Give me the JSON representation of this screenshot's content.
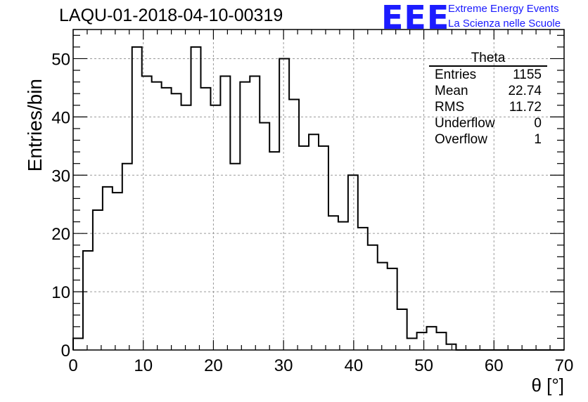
{
  "title": "LAQU-01-2018-04-10-00319",
  "logo": {
    "text": "EEE",
    "line1": "Extreme Energy Events",
    "line2": "La Scienza nelle Scuole",
    "color": "#1c1cff"
  },
  "stats": {
    "name": "Theta",
    "rows": [
      {
        "label": "Entries",
        "value": "1155"
      },
      {
        "label": "Mean",
        "value": "22.74"
      },
      {
        "label": "RMS",
        "value": "11.72"
      },
      {
        "label": "Underflow",
        "value": "0"
      },
      {
        "label": "Overflow",
        "value": "1"
      }
    ]
  },
  "chart_data": {
    "type": "bar",
    "title": "LAQU-01-2018-04-10-00319",
    "xlabel": "θ [°]",
    "ylabel": "Entries/bin",
    "xlim": [
      0,
      70
    ],
    "ylim": [
      0,
      55
    ],
    "grid": true,
    "bin_width": 1.4,
    "x_ticks": [
      0,
      10,
      20,
      30,
      40,
      50,
      60,
      70
    ],
    "y_ticks": [
      0,
      10,
      20,
      30,
      40,
      50
    ],
    "values": [
      2,
      17,
      24,
      28,
      27,
      32,
      52,
      47,
      46,
      45,
      44,
      42,
      52,
      45,
      42,
      47,
      32,
      46,
      47,
      39,
      34,
      50,
      43,
      35,
      37,
      35,
      23,
      22,
      30,
      21,
      18,
      15,
      14,
      7,
      2,
      3,
      4,
      3,
      1,
      0,
      0,
      0,
      0,
      0,
      0,
      0,
      0,
      0,
      0,
      0
    ]
  }
}
